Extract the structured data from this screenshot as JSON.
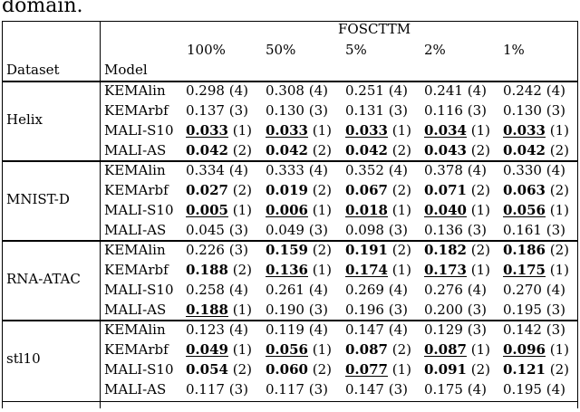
{
  "lead_text": "domain.",
  "header": {
    "metric": "FOSCTTM",
    "percents": [
      "100%",
      "50%",
      "5%",
      "2%",
      "1%"
    ],
    "dataset_label": "Dataset",
    "model_label": "Model"
  },
  "groups": [
    {
      "dataset": "Helix",
      "rows": [
        {
          "model": "KEMAlin",
          "cells": [
            {
              "value": "0.298",
              "rank": "(4)",
              "bold": false,
              "underline": false
            },
            {
              "value": "0.308",
              "rank": "(4)",
              "bold": false,
              "underline": false
            },
            {
              "value": "0.251",
              "rank": "(4)",
              "bold": false,
              "underline": false
            },
            {
              "value": "0.241",
              "rank": "(4)",
              "bold": false,
              "underline": false
            },
            {
              "value": "0.242",
              "rank": "(4)",
              "bold": false,
              "underline": false
            }
          ]
        },
        {
          "model": "KEMArbf",
          "cells": [
            {
              "value": "0.137",
              "rank": "(3)",
              "bold": false,
              "underline": false
            },
            {
              "value": "0.130",
              "rank": "(3)",
              "bold": false,
              "underline": false
            },
            {
              "value": "0.131",
              "rank": "(3)",
              "bold": false,
              "underline": false
            },
            {
              "value": "0.116",
              "rank": "(3)",
              "bold": false,
              "underline": false
            },
            {
              "value": "0.130",
              "rank": "(3)",
              "bold": false,
              "underline": false
            }
          ]
        },
        {
          "model": "MALI-S10",
          "cells": [
            {
              "value": "0.033",
              "rank": "(1)",
              "bold": true,
              "underline": true
            },
            {
              "value": "0.033",
              "rank": "(1)",
              "bold": true,
              "underline": true
            },
            {
              "value": "0.033",
              "rank": "(1)",
              "bold": true,
              "underline": true
            },
            {
              "value": "0.034",
              "rank": "(1)",
              "bold": true,
              "underline": true
            },
            {
              "value": "0.033",
              "rank": "(1)",
              "bold": true,
              "underline": true
            }
          ]
        },
        {
          "model": "MALI-AS",
          "cells": [
            {
              "value": "0.042",
              "rank": "(2)",
              "bold": true,
              "underline": false
            },
            {
              "value": "0.042",
              "rank": "(2)",
              "bold": true,
              "underline": false
            },
            {
              "value": "0.042",
              "rank": "(2)",
              "bold": true,
              "underline": false
            },
            {
              "value": "0.043",
              "rank": "(2)",
              "bold": true,
              "underline": false
            },
            {
              "value": "0.042",
              "rank": "(2)",
              "bold": true,
              "underline": false
            }
          ]
        }
      ]
    },
    {
      "dataset": "MNIST-D",
      "rows": [
        {
          "model": "KEMAlin",
          "cells": [
            {
              "value": "0.334",
              "rank": "(4)",
              "bold": false,
              "underline": false
            },
            {
              "value": "0.333",
              "rank": "(4)",
              "bold": false,
              "underline": false
            },
            {
              "value": "0.352",
              "rank": "(4)",
              "bold": false,
              "underline": false
            },
            {
              "value": "0.378",
              "rank": "(4)",
              "bold": false,
              "underline": false
            },
            {
              "value": "0.330",
              "rank": "(4)",
              "bold": false,
              "underline": false
            }
          ]
        },
        {
          "model": "KEMArbf",
          "cells": [
            {
              "value": "0.027",
              "rank": "(2)",
              "bold": true,
              "underline": false
            },
            {
              "value": "0.019",
              "rank": "(2)",
              "bold": true,
              "underline": false
            },
            {
              "value": "0.067",
              "rank": "(2)",
              "bold": true,
              "underline": false
            },
            {
              "value": "0.071",
              "rank": "(2)",
              "bold": true,
              "underline": false
            },
            {
              "value": "0.063",
              "rank": "(2)",
              "bold": true,
              "underline": false
            }
          ]
        },
        {
          "model": "MALI-S10",
          "cells": [
            {
              "value": "0.005",
              "rank": "(1)",
              "bold": true,
              "underline": true
            },
            {
              "value": "0.006",
              "rank": "(1)",
              "bold": true,
              "underline": true
            },
            {
              "value": "0.018",
              "rank": "(1)",
              "bold": true,
              "underline": true
            },
            {
              "value": "0.040",
              "rank": "(1)",
              "bold": true,
              "underline": true
            },
            {
              "value": "0.056",
              "rank": "(1)",
              "bold": true,
              "underline": true
            }
          ]
        },
        {
          "model": "MALI-AS",
          "cells": [
            {
              "value": "0.045",
              "rank": "(3)",
              "bold": false,
              "underline": false
            },
            {
              "value": "0.049",
              "rank": "(3)",
              "bold": false,
              "underline": false
            },
            {
              "value": "0.098",
              "rank": "(3)",
              "bold": false,
              "underline": false
            },
            {
              "value": "0.136",
              "rank": "(3)",
              "bold": false,
              "underline": false
            },
            {
              "value": "0.161",
              "rank": "(3)",
              "bold": false,
              "underline": false
            }
          ]
        }
      ]
    },
    {
      "dataset": "RNA-ATAC",
      "rows": [
        {
          "model": "KEMAlin",
          "cells": [
            {
              "value": "0.226",
              "rank": "(3)",
              "bold": false,
              "underline": false
            },
            {
              "value": "0.159",
              "rank": "(2)",
              "bold": true,
              "underline": false
            },
            {
              "value": "0.191",
              "rank": "(2)",
              "bold": true,
              "underline": false
            },
            {
              "value": "0.182",
              "rank": "(2)",
              "bold": true,
              "underline": false
            },
            {
              "value": "0.186",
              "rank": "(2)",
              "bold": true,
              "underline": false
            }
          ]
        },
        {
          "model": "KEMArbf",
          "cells": [
            {
              "value": "0.188",
              "rank": "(2)",
              "bold": true,
              "underline": false
            },
            {
              "value": "0.136",
              "rank": "(1)",
              "bold": true,
              "underline": true
            },
            {
              "value": "0.174",
              "rank": "(1)",
              "bold": true,
              "underline": true
            },
            {
              "value": "0.173",
              "rank": "(1)",
              "bold": true,
              "underline": true
            },
            {
              "value": "0.175",
              "rank": "(1)",
              "bold": true,
              "underline": true
            }
          ]
        },
        {
          "model": "MALI-S10",
          "cells": [
            {
              "value": "0.258",
              "rank": "(4)",
              "bold": false,
              "underline": false
            },
            {
              "value": "0.261",
              "rank": "(4)",
              "bold": false,
              "underline": false
            },
            {
              "value": "0.269",
              "rank": "(4)",
              "bold": false,
              "underline": false
            },
            {
              "value": "0.276",
              "rank": "(4)",
              "bold": false,
              "underline": false
            },
            {
              "value": "0.270",
              "rank": "(4)",
              "bold": false,
              "underline": false
            }
          ]
        },
        {
          "model": "MALI-AS",
          "cells": [
            {
              "value": "0.188",
              "rank": "(1)",
              "bold": true,
              "underline": true
            },
            {
              "value": "0.190",
              "rank": "(3)",
              "bold": false,
              "underline": false
            },
            {
              "value": "0.196",
              "rank": "(3)",
              "bold": false,
              "underline": false
            },
            {
              "value": "0.200",
              "rank": "(3)",
              "bold": false,
              "underline": false
            },
            {
              "value": "0.195",
              "rank": "(3)",
              "bold": false,
              "underline": false
            }
          ]
        }
      ]
    },
    {
      "dataset": "stl10",
      "rows": [
        {
          "model": "KEMAlin",
          "cells": [
            {
              "value": "0.123",
              "rank": "(4)",
              "bold": false,
              "underline": false
            },
            {
              "value": "0.119",
              "rank": "(4)",
              "bold": false,
              "underline": false
            },
            {
              "value": "0.147",
              "rank": "(4)",
              "bold": false,
              "underline": false
            },
            {
              "value": "0.129",
              "rank": "(3)",
              "bold": false,
              "underline": false
            },
            {
              "value": "0.142",
              "rank": "(3)",
              "bold": false,
              "underline": false
            }
          ]
        },
        {
          "model": "KEMArbf",
          "cells": [
            {
              "value": "0.049",
              "rank": "(1)",
              "bold": true,
              "underline": true
            },
            {
              "value": "0.056",
              "rank": "(1)",
              "bold": true,
              "underline": true
            },
            {
              "value": "0.087",
              "rank": "(2)",
              "bold": true,
              "underline": false
            },
            {
              "value": "0.087",
              "rank": "(1)",
              "bold": true,
              "underline": true
            },
            {
              "value": "0.096",
              "rank": "(1)",
              "bold": true,
              "underline": true
            }
          ]
        },
        {
          "model": "MALI-S10",
          "cells": [
            {
              "value": "0.054",
              "rank": "(2)",
              "bold": true,
              "underline": false
            },
            {
              "value": "0.060",
              "rank": "(2)",
              "bold": true,
              "underline": false
            },
            {
              "value": "0.077",
              "rank": "(1)",
              "bold": true,
              "underline": true
            },
            {
              "value": "0.091",
              "rank": "(2)",
              "bold": true,
              "underline": false
            },
            {
              "value": "0.121",
              "rank": "(2)",
              "bold": true,
              "underline": false
            }
          ]
        },
        {
          "model": "MALI-AS",
          "cells": [
            {
              "value": "0.117",
              "rank": "(3)",
              "bold": false,
              "underline": false
            },
            {
              "value": "0.117",
              "rank": "(3)",
              "bold": false,
              "underline": false
            },
            {
              "value": "0.147",
              "rank": "(3)",
              "bold": false,
              "underline": false
            },
            {
              "value": "0.175",
              "rank": "(4)",
              "bold": false,
              "underline": false
            },
            {
              "value": "0.195",
              "rank": "(4)",
              "bold": false,
              "underline": false
            }
          ]
        }
      ]
    }
  ]
}
